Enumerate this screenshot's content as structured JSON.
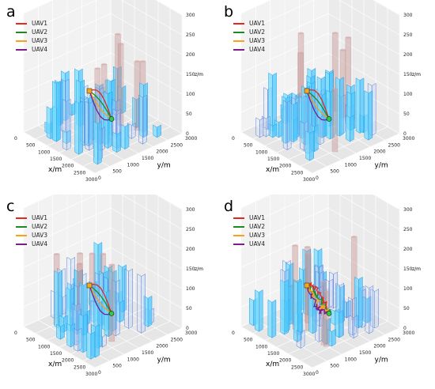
{
  "chart_data": [
    {
      "type": "3d-scatter",
      "panel_label": "a",
      "x_ticks": [
        "0",
        "500",
        "1000",
        "1500",
        "2000",
        "2500",
        "3000"
      ],
      "y_ticks": [
        "0",
        "500",
        "1000",
        "1500",
        "2000",
        "2500",
        "3000"
      ],
      "z_ticks": [
        "0",
        "50",
        "100",
        "150",
        "200",
        "250",
        "300"
      ],
      "xlabel": "x/m",
      "ylabel": "y/m",
      "zlabel": "z/m",
      "series": [
        {
          "name": "UAV1",
          "color": "#e8261b"
        },
        {
          "name": "UAV2",
          "color": "#1f8a1f"
        },
        {
          "name": "UAV3",
          "color": "#ff9e1a"
        },
        {
          "name": "UAV4",
          "color": "#7a1f8a"
        }
      ],
      "legend": "top-left"
    },
    {
      "type": "3d-scatter",
      "panel_label": "b",
      "x_ticks": [
        "0",
        "500",
        "1000",
        "1500",
        "2000",
        "2500",
        "3000"
      ],
      "y_ticks": [
        "0",
        "500",
        "1000",
        "1500",
        "2000",
        "2500",
        "3000"
      ],
      "z_ticks": [
        "0",
        "50",
        "100",
        "150",
        "200",
        "250",
        "300"
      ],
      "xlabel": "x/m",
      "ylabel": "y/m",
      "zlabel": "z/m",
      "series": [
        {
          "name": "UAV1",
          "color": "#e8261b"
        },
        {
          "name": "UAV2",
          "color": "#1f8a1f"
        },
        {
          "name": "UAV3",
          "color": "#ff9e1a"
        },
        {
          "name": "UAV4",
          "color": "#7a1f8a"
        }
      ],
      "legend": "top-left"
    },
    {
      "type": "3d-scatter",
      "panel_label": "c",
      "x_ticks": [
        "0",
        "500",
        "1000",
        "1500",
        "2000",
        "2500",
        "3000"
      ],
      "y_ticks": [
        "0",
        "500",
        "1000",
        "1500",
        "2000",
        "2500",
        "3000"
      ],
      "z_ticks": [
        "0",
        "50",
        "100",
        "150",
        "200",
        "250",
        "300"
      ],
      "xlabel": "x/m",
      "ylabel": "y/m",
      "zlabel": "z/m",
      "series": [
        {
          "name": "UAV1",
          "color": "#e8261b"
        },
        {
          "name": "UAV2",
          "color": "#1f8a1f"
        },
        {
          "name": "UAV3",
          "color": "#ff9e1a"
        },
        {
          "name": "UAV4",
          "color": "#7a1f8a"
        }
      ],
      "legend": "top-left"
    },
    {
      "type": "3d-scatter",
      "panel_label": "d",
      "x_ticks": [
        "0",
        "500",
        "1000",
        "1500",
        "2000",
        "2500",
        "3000"
      ],
      "y_ticks": [
        "0",
        "500",
        "1000",
        "1500",
        "2000",
        "2500",
        "3000"
      ],
      "z_ticks": [
        "0",
        "50",
        "100",
        "150",
        "200",
        "250",
        "300"
      ],
      "xlabel": "x/m",
      "ylabel": "y/m",
      "zlabel": "z/m",
      "series": [
        {
          "name": "UAV1",
          "color": "#e8261b"
        },
        {
          "name": "UAV2",
          "color": "#1f8a1f"
        },
        {
          "name": "UAV3",
          "color": "#ff9e1a"
        },
        {
          "name": "UAV4",
          "color": "#7a1f8a"
        }
      ],
      "legend": "top-left"
    }
  ]
}
